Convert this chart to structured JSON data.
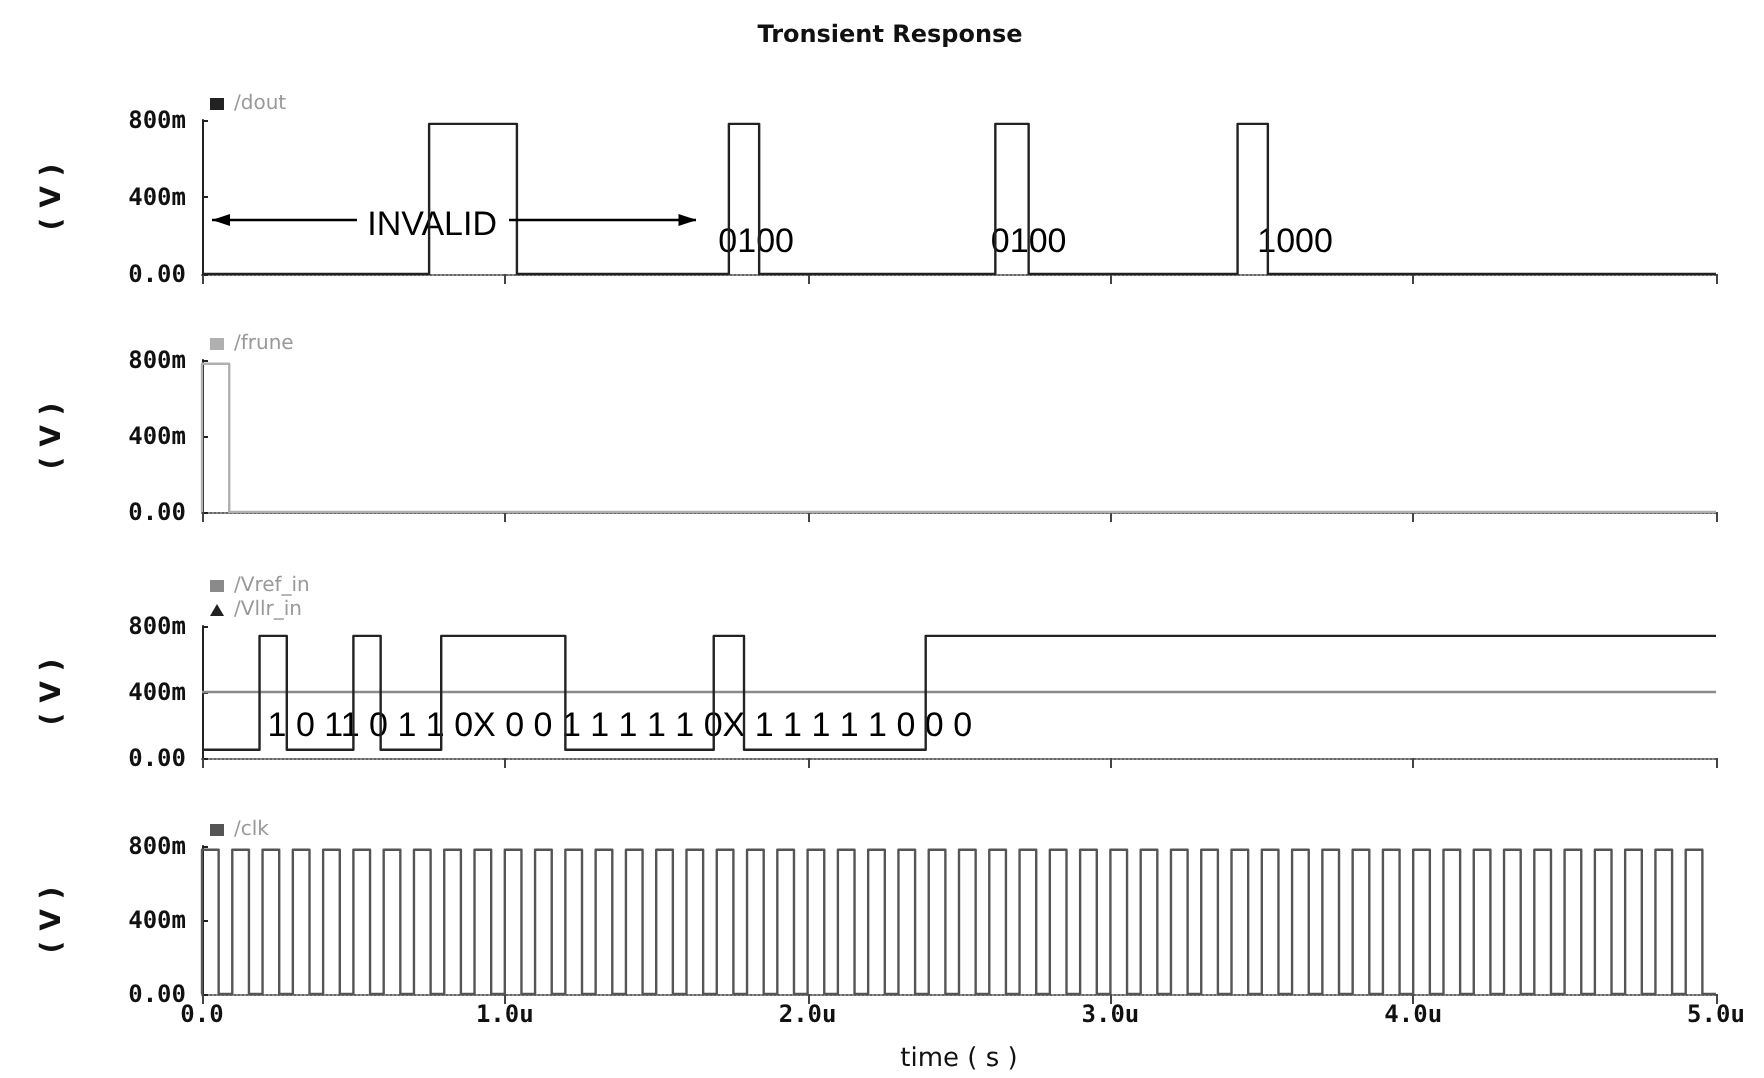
{
  "chart_data": [
    {
      "type": "line",
      "title": "Tronsient Response",
      "ylabel": "( V )",
      "legend": "top left",
      "tick_labels": "y",
      "xlim": [
        0,
        5
      ],
      "xticks": [
        0,
        1,
        2,
        3,
        4,
        5
      ],
      "ylim": [
        0,
        800
      ],
      "yticks": [
        {
          "value": 0,
          "label": "0.00"
        },
        {
          "value": 400,
          "label": "400m"
        },
        {
          "value": 800,
          "label": "800m"
        }
      ],
      "series": [
        {
          "name": "/dout",
          "color": "#222222",
          "x": [
            0,
            0.75,
            0.75,
            1.04,
            1.04,
            1.74,
            1.74,
            1.84,
            1.84,
            2.62,
            2.62,
            2.73,
            2.73,
            3.42,
            3.42,
            3.52,
            3.52,
            5
          ],
          "values": [
            0,
            0,
            780,
            780,
            0,
            0,
            780,
            780,
            0,
            0,
            780,
            780,
            0,
            0,
            780,
            780,
            0,
            0
          ]
        }
      ],
      "annotations": [
        {
          "text": "INVALID",
          "x": 0.76,
          "y": 260
        },
        {
          "text": "0100",
          "x": 1.83,
          "y": 170
        },
        {
          "text": "0100",
          "x": 2.73,
          "y": 170
        },
        "1000"
      ]
    },
    {
      "type": "line",
      "ylabel": "( V )",
      "legend": "top left",
      "tick_labels": "y",
      "xlim": [
        0,
        5
      ],
      "xticks": [
        0,
        1,
        2,
        3,
        4,
        5
      ],
      "ylim": [
        0,
        800
      ],
      "yticks": [
        {
          "value": 0,
          "label": "0.00"
        },
        {
          "value": 400,
          "label": "400m"
        },
        {
          "value": 800,
          "label": "800m"
        }
      ],
      "series": [
        {
          "name": "/frune",
          "color": "#b0b0b0",
          "x": [
            0,
            0,
            0.09,
            0.09,
            5
          ],
          "values": [
            0,
            780,
            780,
            0,
            0
          ]
        }
      ]
    },
    {
      "type": "line",
      "ylabel": "( V )",
      "legend": "top left",
      "tick_labels": "y",
      "xlim": [
        0,
        5
      ],
      "xticks": [
        0,
        1,
        2,
        3,
        4,
        5
      ],
      "ylim": [
        0,
        800
      ],
      "yticks": [
        {
          "value": 0,
          "label": "0.00"
        },
        {
          "value": 400,
          "label": "400m"
        },
        {
          "value": 800,
          "label": "800m"
        }
      ],
      "series": [
        {
          "name": "/Vref_in",
          "color": "#8a8a8a",
          "x": [
            0,
            5
          ],
          "values": [
            400,
            400
          ]
        },
        {
          "name": "/Vllr_in",
          "color": "#222222",
          "x": [
            0,
            0.19,
            0.19,
            0.28,
            0.28,
            0.5,
            0.5,
            0.59,
            0.59,
            0.79,
            0.79,
            1.2,
            1.2,
            1.69,
            1.69,
            1.79,
            1.79,
            2.39,
            2.39,
            5
          ],
          "values": [
            50,
            50,
            740,
            740,
            50,
            50,
            740,
            740,
            50,
            50,
            740,
            740,
            50,
            50,
            740,
            740,
            50,
            50,
            740,
            740
          ]
        }
      ],
      "annotations": [
        "1 0 11 0 1 1 0X 0 0 1 1 1 1 1 0X 1 1 1 1 1 0 0 0"
      ]
    },
    {
      "type": "line",
      "ylabel": "( V )",
      "xlabel": "time ( s )",
      "legend": "top left",
      "xlim": [
        0,
        5
      ],
      "xticks": [
        {
          "value": 0,
          "label": "0.0"
        },
        {
          "value": 1,
          "label": "1.0u"
        },
        {
          "value": 2,
          "label": "2.0u"
        },
        {
          "value": 3,
          "label": "3.0u"
        },
        {
          "value": 4,
          "label": "4.0u"
        },
        {
          "value": 5,
          "label": "5.0u"
        }
      ],
      "ylim": [
        0,
        800
      ],
      "yticks": [
        {
          "value": 0,
          "label": "0.00"
        },
        {
          "value": 400,
          "label": "400m"
        },
        {
          "value": 800,
          "label": "800m"
        }
      ],
      "series": [
        {
          "name": "/clk",
          "color": "#555555",
          "x": [
            0,
            0,
            0.055,
            0.055,
            0.1,
            0.1,
            0.155,
            0.155,
            0.2,
            0.2,
            0.255,
            0.255,
            0.3,
            0.3,
            0.355,
            0.355,
            0.4,
            0.4,
            0.455,
            0.455,
            0.5,
            0.5,
            0.555,
            0.555,
            0.6,
            0.6,
            0.655,
            0.655,
            0.7,
            0.7,
            0.755,
            0.755,
            0.8,
            0.8,
            0.855,
            0.855,
            0.9,
            0.9,
            0.955,
            0.955,
            1,
            1,
            1.055,
            1.055,
            1.1,
            1.1,
            1.155,
            1.155,
            1.2,
            1.2,
            1.255,
            1.255,
            1.3,
            1.3,
            1.355,
            1.355,
            1.4,
            1.4,
            1.455,
            1.455,
            1.5,
            1.5,
            1.555,
            1.555,
            1.6,
            1.6,
            1.655,
            1.655,
            1.7,
            1.7,
            1.755,
            1.755,
            1.8,
            1.8,
            1.855,
            1.855,
            1.9,
            1.9,
            1.955,
            1.955,
            2,
            2,
            2.055,
            2.055,
            2.1,
            2.1,
            2.155,
            2.155,
            2.2,
            2.2,
            2.255,
            2.255,
            2.3,
            2.3,
            2.355,
            2.355,
            2.4,
            2.4,
            2.455,
            2.455,
            2.5,
            2.5,
            2.555,
            2.555,
            2.6,
            2.6,
            2.655,
            2.655,
            2.7,
            2.7,
            2.755,
            2.755,
            2.8,
            2.8,
            2.855,
            2.855,
            2.9,
            2.9,
            2.955,
            2.955,
            3,
            3,
            3.055,
            3.055,
            3.1,
            3.1,
            3.155,
            3.155,
            3.2,
            3.2,
            3.255,
            3.255,
            3.3,
            3.3,
            3.355,
            3.355,
            3.4,
            3.4,
            3.455,
            3.455,
            3.5,
            3.5,
            3.555,
            3.555,
            3.6,
            3.6,
            3.655,
            3.655,
            3.7,
            3.7,
            3.755,
            3.755,
            3.8,
            3.8,
            3.855,
            3.855,
            3.9,
            3.9,
            3.955,
            3.955,
            4,
            4,
            4.055,
            4.055,
            4.1,
            4.1,
            4.155,
            4.155,
            4.2,
            4.2,
            4.255,
            4.255,
            4.3,
            4.3,
            4.355,
            4.355,
            4.4,
            4.4,
            4.455,
            4.455,
            4.5,
            4.5,
            4.555,
            4.555,
            4.6,
            4.6,
            4.655,
            4.655,
            4.7,
            4.7,
            4.755,
            4.755,
            4.8,
            4.8,
            4.855,
            4.855,
            4.9,
            4.9,
            4.955,
            4.955,
            5
          ],
          "values": [
            0,
            780,
            780,
            0,
            0,
            780,
            780,
            0,
            0,
            780,
            780,
            0,
            0,
            780,
            780,
            0,
            0,
            780,
            780,
            0,
            0,
            780,
            780,
            0,
            0,
            780,
            780,
            0,
            0,
            780,
            780,
            0,
            0,
            780,
            780,
            0,
            0,
            780,
            780,
            0,
            0,
            780,
            780,
            0,
            0,
            780,
            780,
            0,
            0,
            780,
            780,
            0,
            0,
            780,
            780,
            0,
            0,
            780,
            780,
            0,
            0,
            780,
            780,
            0,
            0,
            780,
            780,
            0,
            0,
            780,
            780,
            0,
            0,
            780,
            780,
            0,
            0,
            780,
            780,
            0,
            0,
            780,
            780,
            0,
            0,
            780,
            780,
            0,
            0,
            780,
            780,
            0,
            0,
            780,
            780,
            0,
            0,
            780,
            780,
            0,
            0,
            780,
            780,
            0,
            0,
            780,
            780,
            0,
            0,
            780,
            780,
            0,
            0,
            780,
            780,
            0,
            0,
            780,
            780,
            0,
            0,
            780,
            780,
            0,
            0,
            780,
            780,
            0,
            0,
            780,
            780,
            0,
            0,
            780,
            780,
            0,
            0,
            780,
            780,
            0,
            0,
            780,
            780,
            0,
            0,
            780,
            780,
            0,
            0,
            780,
            780,
            0,
            0,
            780,
            780,
            0,
            0,
            780,
            780,
            0,
            0,
            780,
            780,
            0,
            0,
            780,
            780,
            0,
            0,
            780,
            780,
            0,
            0,
            780,
            780,
            0,
            0,
            780,
            780,
            0,
            0,
            780,
            780,
            0,
            0,
            780,
            780,
            0,
            0,
            780,
            780,
            0,
            0,
            780,
            780,
            0,
            0,
            780,
            780,
            0,
            0
          ]
        }
      ]
    }
  ]
}
